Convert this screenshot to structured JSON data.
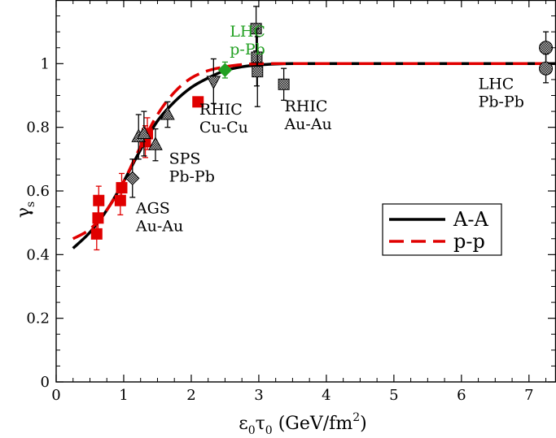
{
  "chart_data": {
    "type": "scatter",
    "xlabel_main": "ε",
    "xlabel_sub1": "0",
    "xlabel_mid": "τ",
    "xlabel_sub2": "0",
    "xlabel_unit": " (GeV/fm",
    "xlabel_sup": "2",
    "xlabel_close": ")",
    "ylabel_main": "γ",
    "ylabel_sub": "s",
    "xlim": [
      0,
      7.4
    ],
    "ylim": [
      0,
      1.2
    ],
    "xticks": [
      0,
      1,
      2,
      3,
      4,
      5,
      6,
      7
    ],
    "yticks": [
      0,
      0.2,
      0.4,
      0.6,
      0.8,
      1
    ],
    "xtick_labels": [
      "0",
      "1",
      "2",
      "3",
      "4",
      "5",
      "6",
      "7"
    ],
    "ytick_labels": [
      "0",
      "0.2",
      "0.4",
      "0.6",
      "0.8",
      "1"
    ],
    "colors": {
      "aa": "#000000",
      "pp": "#e00000",
      "green": "#22a022",
      "points": "#333333"
    },
    "curves": [
      {
        "name": "A-A",
        "style": "solid",
        "color": "#000000",
        "x": [
          0.25,
          0.5,
          0.75,
          1.0,
          1.25,
          1.5,
          1.75,
          2.0,
          2.25,
          2.5,
          2.75,
          3.0,
          3.25,
          3.5,
          4.0,
          5.0,
          6.0,
          7.0,
          7.4
        ],
        "y": [
          0.42,
          0.47,
          0.54,
          0.63,
          0.73,
          0.82,
          0.88,
          0.925,
          0.955,
          0.978,
          0.99,
          0.996,
          0.999,
          1.0,
          1.0,
          1.0,
          1.0,
          1.0,
          1.0
        ]
      },
      {
        "name": "p-p",
        "style": "dashed",
        "color": "#e00000",
        "x": [
          0.25,
          0.5,
          0.75,
          1.0,
          1.25,
          1.5,
          1.75,
          2.0,
          2.25,
          2.5,
          2.75,
          3.0,
          3.25,
          3.5,
          4.0,
          5.0,
          6.0,
          7.0,
          7.4
        ],
        "y": [
          0.45,
          0.48,
          0.54,
          0.63,
          0.74,
          0.84,
          0.91,
          0.955,
          0.978,
          0.99,
          0.997,
          1.0,
          1.0,
          1.0,
          1.0,
          1.0,
          1.0,
          1.0,
          1.0
        ]
      }
    ],
    "points": [
      {
        "x": 0.6,
        "y": 0.465,
        "err": 0.05,
        "marker": "square",
        "color": "#e00000"
      },
      {
        "x": 0.62,
        "y": 0.515,
        "err": 0.045,
        "marker": "square",
        "color": "#e00000"
      },
      {
        "x": 0.63,
        "y": 0.57,
        "err": 0.045,
        "marker": "square",
        "color": "#e00000"
      },
      {
        "x": 0.95,
        "y": 0.57,
        "err": 0.045,
        "marker": "square",
        "color": "#e00000"
      },
      {
        "x": 0.97,
        "y": 0.61,
        "err": 0.045,
        "marker": "square",
        "color": "#e00000"
      },
      {
        "x": 1.32,
        "y": 0.755,
        "err": 0.05,
        "marker": "square",
        "color": "#e00000"
      },
      {
        "x": 1.35,
        "y": 0.78,
        "err": 0.05,
        "marker": "square",
        "color": "#e00000"
      },
      {
        "x": 2.1,
        "y": 0.88,
        "err": 0.0,
        "marker": "square",
        "color": "#e00000"
      },
      {
        "x": 1.13,
        "y": 0.64,
        "err": 0.06,
        "marker": "diamond",
        "color": "#333333"
      },
      {
        "x": 1.22,
        "y": 0.77,
        "err": 0.07,
        "marker": "triangle-up",
        "color": "#333333"
      },
      {
        "x": 1.3,
        "y": 0.78,
        "err": 0.07,
        "marker": "triangle-up",
        "color": "#333333"
      },
      {
        "x": 1.47,
        "y": 0.745,
        "err": 0.05,
        "marker": "triangle-up",
        "color": "#333333"
      },
      {
        "x": 1.65,
        "y": 0.84,
        "err": 0.04,
        "marker": "triangle-up",
        "color": "#333333"
      },
      {
        "x": 2.33,
        "y": 0.945,
        "err": 0.07,
        "marker": "triangle-down",
        "color": "#333333"
      },
      {
        "x": 2.5,
        "y": 0.98,
        "err": 0.025,
        "marker": "diamond",
        "color": "#22a022"
      },
      {
        "x": 2.96,
        "y": 1.11,
        "err": 0.07,
        "marker": "square",
        "color": "#333333"
      },
      {
        "x": 2.97,
        "y": 1.02,
        "err": 0.09,
        "marker": "square",
        "color": "#333333"
      },
      {
        "x": 2.98,
        "y": 0.975,
        "err": 0.11,
        "marker": "square",
        "color": "#333333"
      },
      {
        "x": 3.37,
        "y": 0.935,
        "err": 0.05,
        "marker": "square",
        "color": "#333333"
      },
      {
        "x": 7.25,
        "y": 1.05,
        "err": 0.05,
        "marker": "circle",
        "color": "#333333"
      },
      {
        "x": 7.25,
        "y": 0.985,
        "err": 0.045,
        "marker": "circle",
        "color": "#333333"
      }
    ],
    "annotations": [
      {
        "lines": [
          "LHC",
          "p-Pb"
        ],
        "x": 2.57,
        "y": 1.085,
        "color": "#22a022"
      },
      {
        "lines": [
          "RHIC",
          "Cu-Cu"
        ],
        "x": 2.12,
        "y": 0.84,
        "color": "#000000"
      },
      {
        "lines": [
          "RHIC",
          "Au-Au"
        ],
        "x": 3.38,
        "y": 0.85,
        "color": "#000000"
      },
      {
        "lines": [
          "SPS",
          "Pb-Pb"
        ],
        "x": 1.67,
        "y": 0.685,
        "color": "#000000"
      },
      {
        "lines": [
          "AGS",
          "Au-Au"
        ],
        "x": 1.18,
        "y": 0.53,
        "color": "#000000"
      },
      {
        "lines": [
          "LHC",
          "Pb-Pb"
        ],
        "x": 6.25,
        "y": 0.92,
        "color": "#000000"
      }
    ],
    "legend": {
      "placement": "center-right",
      "items": [
        {
          "label": "A-A",
          "style": "solid",
          "color": "#000000"
        },
        {
          "label": "p-p",
          "style": "dashed",
          "color": "#e00000"
        }
      ]
    }
  }
}
